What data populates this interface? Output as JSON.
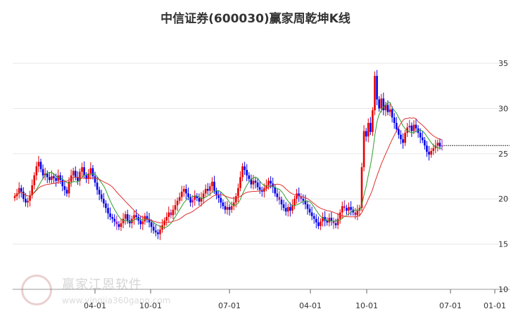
{
  "chart_data": {
    "type": "candlestick",
    "title": "中信证券(600030)赢家周乾坤K线",
    "y_ticks": [
      10,
      15,
      20,
      25,
      30,
      35
    ],
    "ylim": [
      10,
      38.5
    ],
    "x_ticks": [
      "04-01",
      "10-01",
      "07-01",
      "04-01",
      "10-01",
      "07-01",
      "01-01"
    ],
    "grid": true,
    "up_color": "#e60000",
    "down_color": "#0000ee",
    "neutral_color": "#a020a0",
    "ma_fast_color": "#2e9e2e",
    "ma_slow_color": "#e03030",
    "last_price": 25.9,
    "close": [
      20.3,
      20.6,
      21.2,
      20.8,
      20.0,
      19.6,
      19.8,
      20.4,
      21.5,
      22.6,
      23.6,
      24.1,
      23.3,
      22.6,
      22.8,
      22.4,
      22.1,
      22.5,
      22.3,
      22.0,
      22.6,
      22.1,
      21.4,
      21.0,
      20.6,
      21.9,
      22.6,
      23.1,
      22.4,
      22.0,
      23.0,
      23.5,
      22.6,
      22.2,
      22.8,
      23.4,
      22.5,
      21.8,
      21.0,
      20.5,
      20.0,
      19.5,
      19.0,
      18.4,
      18.0,
      17.8,
      17.5,
      17.2,
      16.9,
      17.3,
      17.8,
      18.3,
      17.6,
      17.3,
      17.8,
      18.2,
      18.0,
      17.6,
      17.2,
      17.5,
      18.1,
      17.8,
      17.4,
      16.9,
      16.5,
      16.3,
      16.1,
      16.6,
      17.1,
      17.6,
      18.0,
      18.5,
      18.2,
      18.8,
      19.3,
      19.8,
      20.2,
      20.8,
      21.1,
      20.6,
      20.2,
      19.6,
      19.9,
      20.3,
      20.1,
      19.7,
      20.1,
      20.6,
      21.1,
      20.9,
      21.4,
      21.9,
      20.9,
      20.4,
      20.1,
      19.6,
      19.2,
      18.8,
      19.1,
      18.8,
      19.2,
      19.6,
      20.3,
      21.2,
      22.4,
      23.6,
      23.2,
      22.6,
      22.2,
      21.6,
      22.0,
      21.8,
      21.3,
      21.0,
      20.8,
      21.2,
      21.5,
      22.0,
      21.7,
      21.3,
      20.6,
      20.2,
      19.9,
      19.4,
      19.0,
      18.6,
      19.1,
      18.7,
      19.3,
      20.0,
      20.6,
      20.3,
      20.0,
      19.8,
      19.4,
      18.9,
      18.5,
      18.1,
      17.8,
      17.4,
      17.0,
      17.5,
      18.0,
      17.6,
      17.4,
      17.9,
      17.6,
      17.3,
      17.1,
      17.8,
      18.5,
      19.2,
      19.0,
      18.7,
      19.1,
      18.8,
      18.5,
      18.2,
      18.7,
      19.0,
      23.5,
      27.5,
      26.9,
      28.4,
      27.4,
      29.8,
      33.6,
      31.0,
      30.0,
      31.1,
      29.8,
      30.4,
      29.6,
      29.9,
      29.0,
      28.4,
      27.7,
      27.1,
      26.6,
      26.2,
      27.3,
      27.9,
      28.1,
      27.5,
      28.2,
      27.8,
      27.3,
      26.8,
      26.5,
      25.9,
      25.2,
      24.9,
      25.3,
      25.6,
      25.9,
      26.2,
      25.8,
      25.9
    ]
  }
}
